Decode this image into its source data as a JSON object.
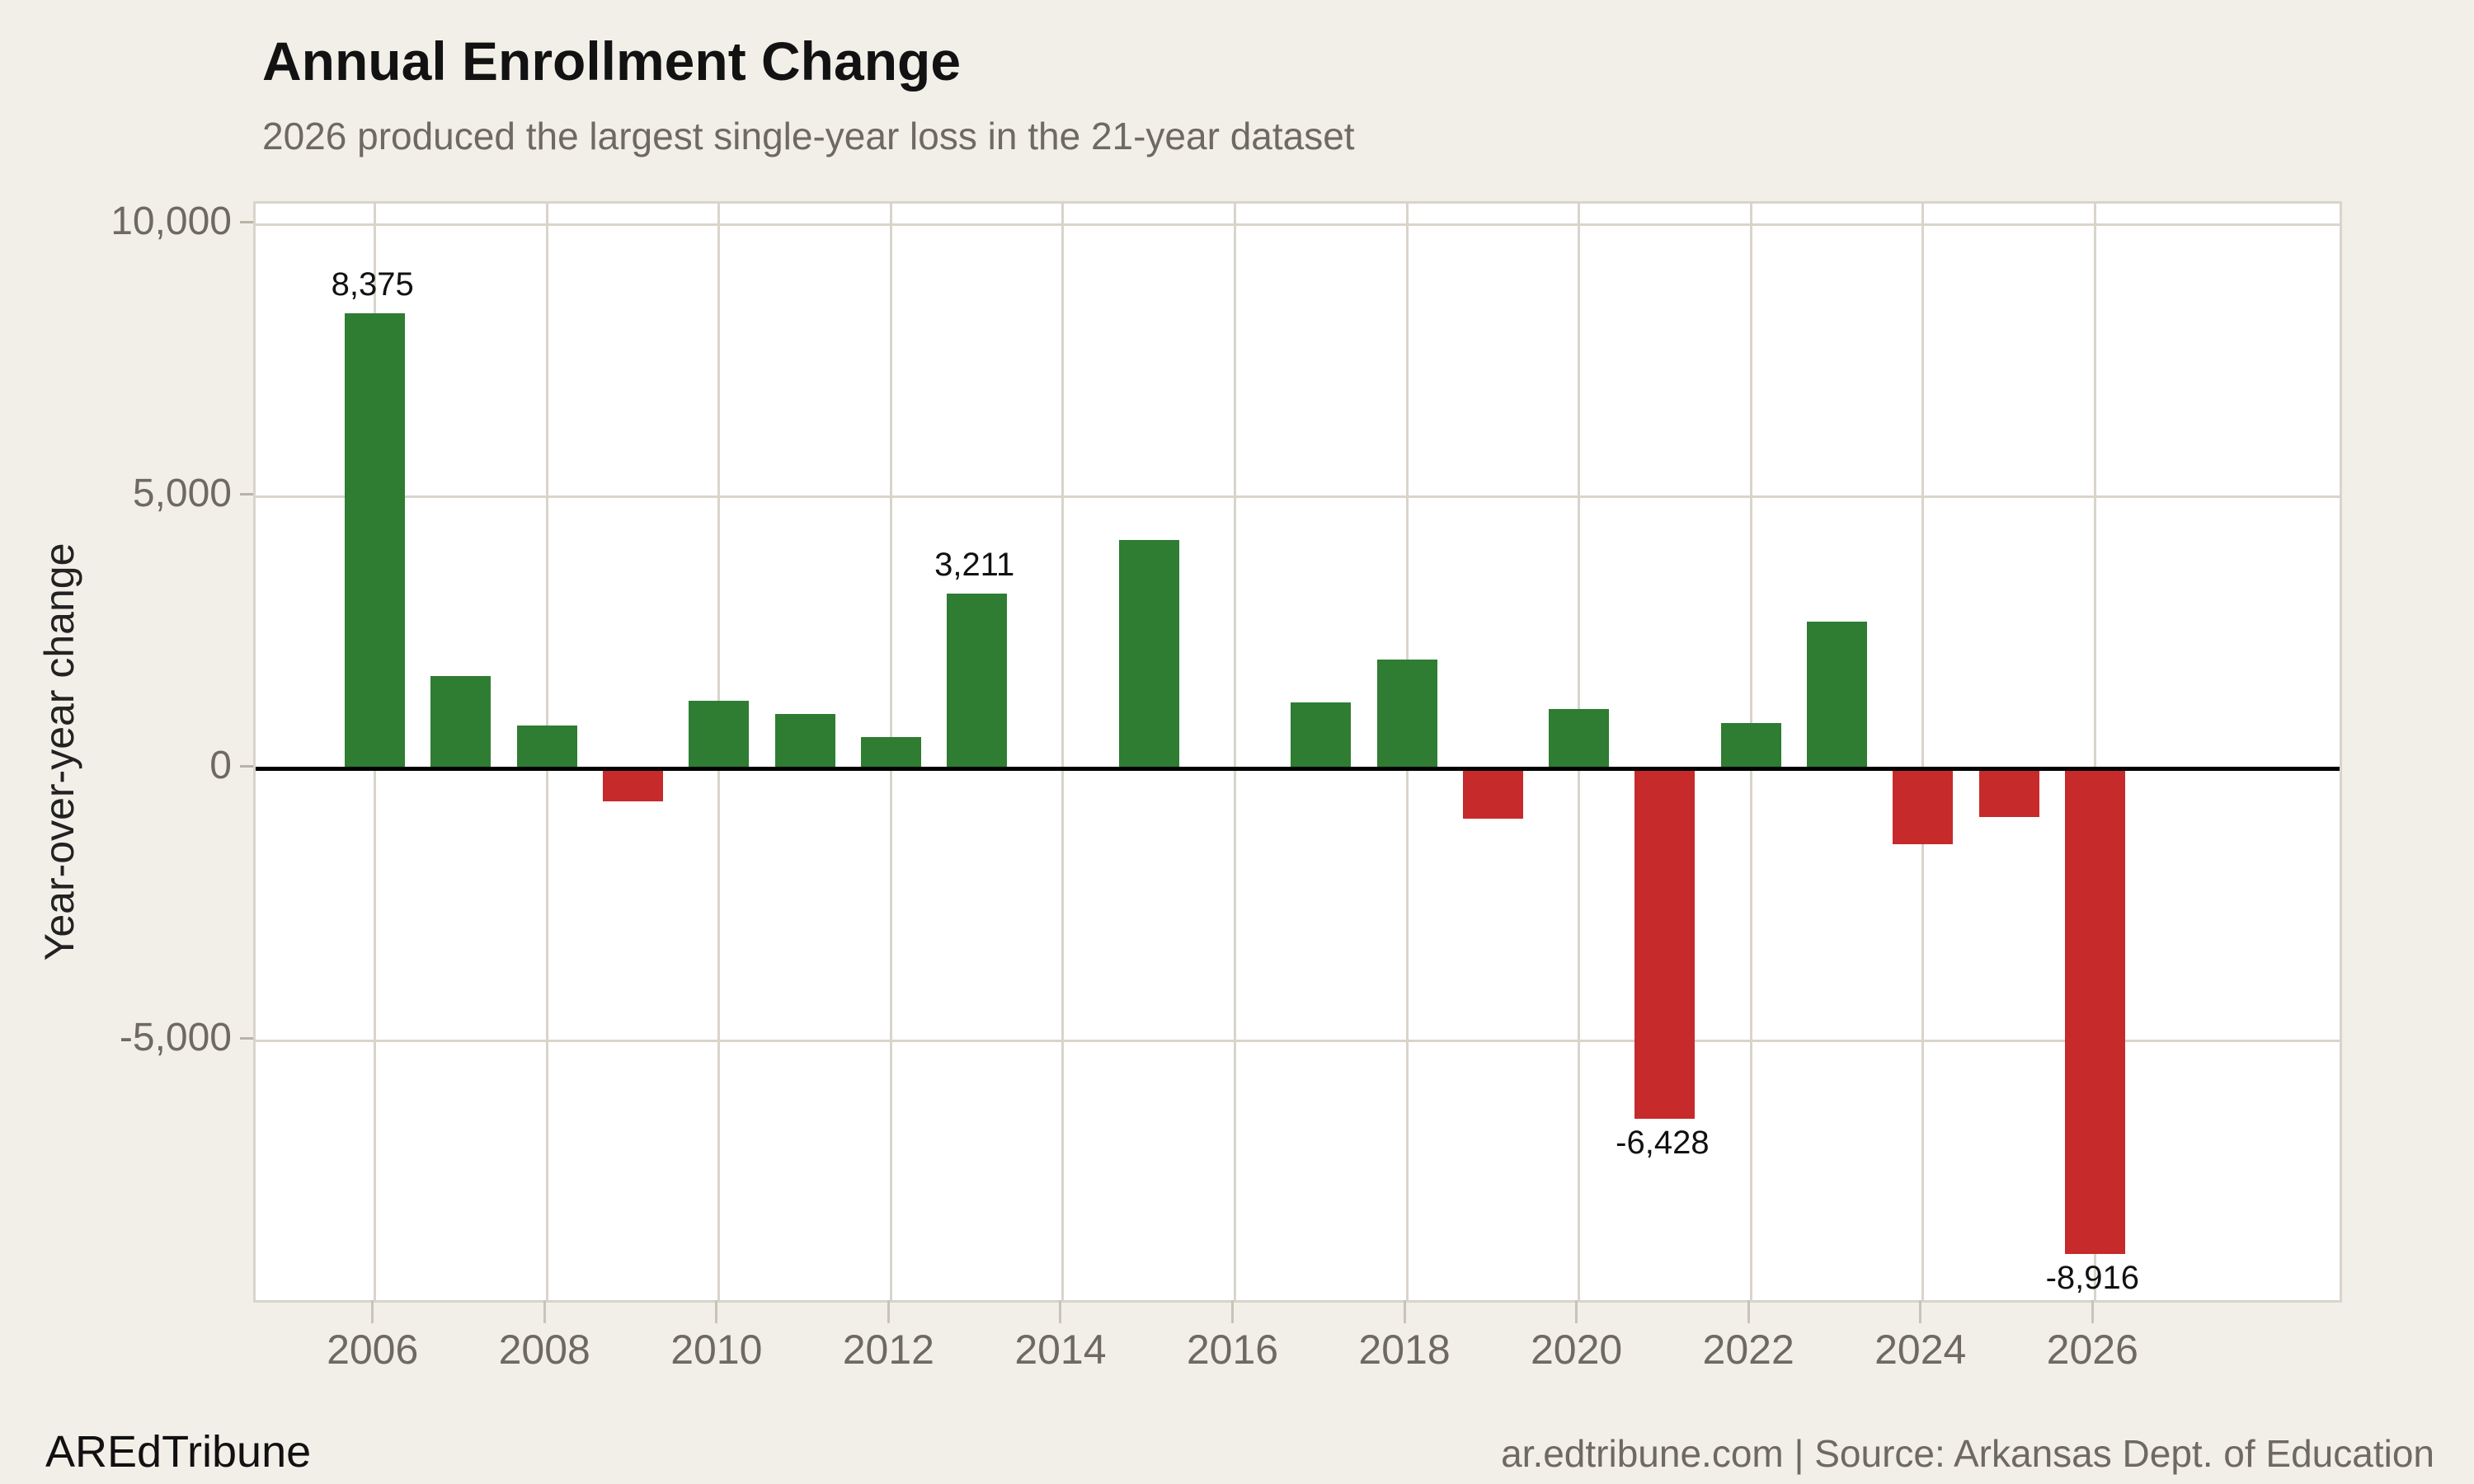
{
  "header": {
    "title": "Annual Enrollment Change",
    "subtitle": "2026 produced the largest single-year loss in the 21-year dataset"
  },
  "footer": {
    "brand": "AREdTribune",
    "attribution": "ar.edtribune.com | Source: Arkansas Dept. of Education"
  },
  "chart_data": {
    "type": "bar",
    "title": "Annual Enrollment Change",
    "subtitle": "2026 produced the largest single-year loss in the 21-year dataset",
    "ylabel": "Year-over-year change",
    "categories": [
      2006,
      2007,
      2008,
      2009,
      2010,
      2011,
      2012,
      2013,
      2014,
      2015,
      2016,
      2017,
      2018,
      2019,
      2020,
      2021,
      2022,
      2023,
      2024,
      2025,
      2026
    ],
    "values": [
      8375,
      1700,
      800,
      -600,
      1250,
      1000,
      580,
      3211,
      0,
      4200,
      0,
      1220,
      2000,
      -920,
      1100,
      -6428,
      840,
      2700,
      -1390,
      -890,
      -8916
    ],
    "bar_labels": {
      "2006": "8,375",
      "2013": "3,211",
      "2021": "-6,428",
      "2026": "-8,916"
    },
    "y_ticks": [
      {
        "value": 10000,
        "label": "10,000"
      },
      {
        "value": 5000,
        "label": "5,000"
      },
      {
        "value": 0,
        "label": "0"
      },
      {
        "value": -5000,
        "label": "-5,000"
      }
    ],
    "x_ticks": [
      2006,
      2008,
      2010,
      2012,
      2014,
      2016,
      2018,
      2020,
      2022,
      2024,
      2026
    ],
    "ylim": [
      -9770,
      10380
    ],
    "grid": true,
    "legend": "none",
    "colors": {
      "positive": "#2e7d32",
      "negative": "#c62a2a",
      "background": "#f2efe8",
      "panel": "#ffffff",
      "gridline": "#d9d4cb",
      "zero_line": "#000000",
      "tick_text": "#6e6a63",
      "title_text": "#121212",
      "subtitle_text": "#6e6a63",
      "bar_label_text": "#111111"
    }
  }
}
